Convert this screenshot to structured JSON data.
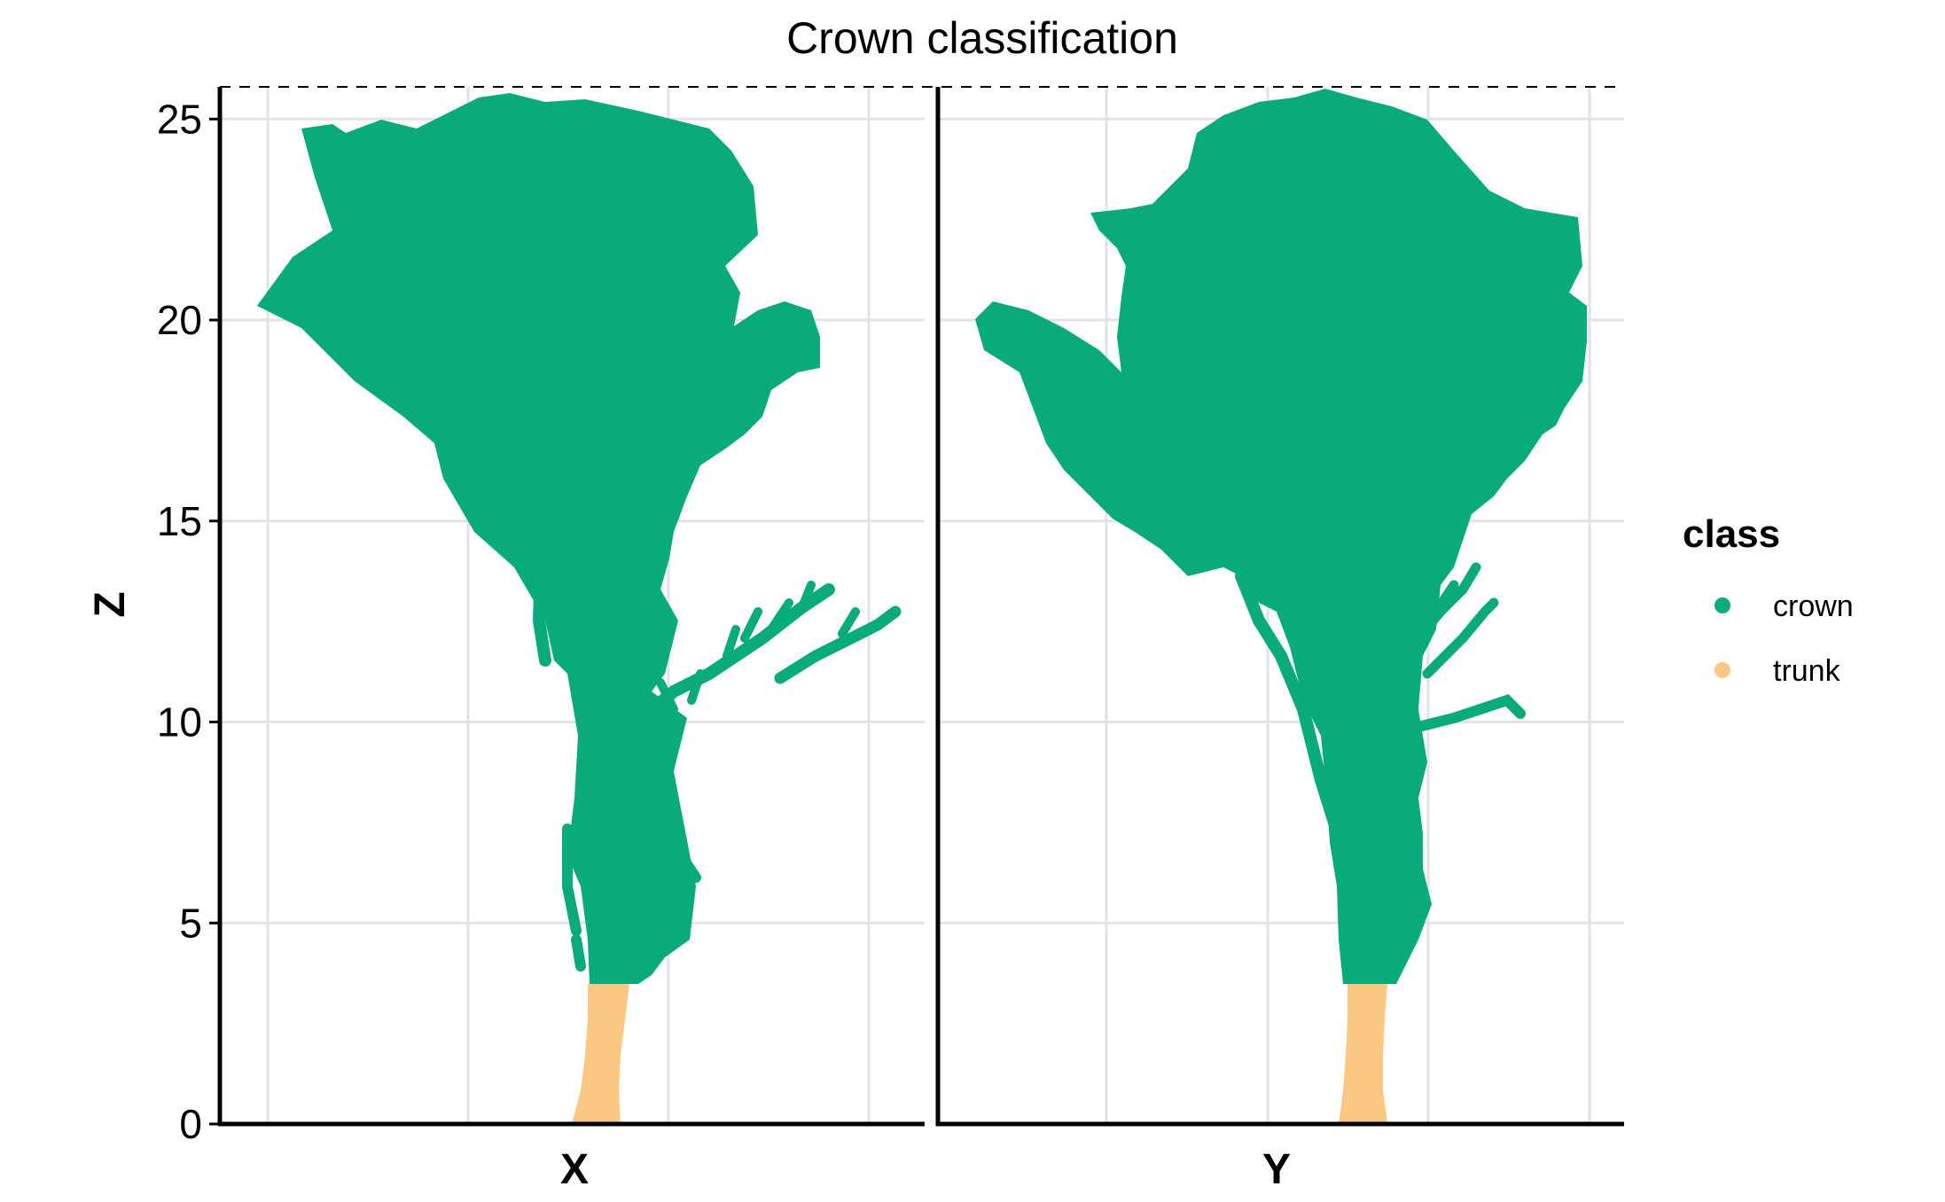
{
  "chart_data": {
    "type": "scatter",
    "title": "Crown classification",
    "ylabel": "Z",
    "ylim": [
      0,
      25.8
    ],
    "y_ticks": [
      0,
      5,
      10,
      15,
      20,
      25
    ],
    "grid": true,
    "facets": [
      {
        "xlabel": "X"
      },
      {
        "xlabel": "Y"
      }
    ],
    "reference_line": {
      "y": 25.8,
      "style": "dashed"
    },
    "legend": {
      "title": "class",
      "position": "right",
      "entries": [
        {
          "name": "crown",
          "color": "#0aab7a"
        },
        {
          "name": "trunk",
          "color": "#fac883"
        }
      ]
    },
    "series": [
      {
        "name": "crown",
        "z_range": [
          3.5,
          25.8
        ]
      },
      {
        "name": "trunk",
        "z_range": [
          0,
          3.5
        ]
      }
    ]
  }
}
